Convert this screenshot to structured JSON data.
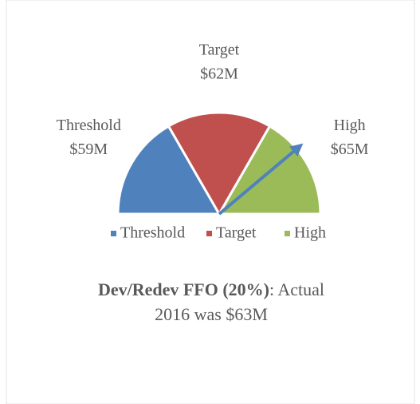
{
  "chart_data": {
    "type": "gauge",
    "categories": [
      "Threshold",
      "Target",
      "High"
    ],
    "values": [
      59,
      62,
      65
    ],
    "value_labels": [
      "$59M",
      "$62M",
      "$65M"
    ],
    "colors": [
      "#4f81bd",
      "#c0504d",
      "#9bbb59"
    ],
    "range": [
      56,
      65
    ],
    "needle": {
      "value": 63,
      "color": "#4f81bd"
    },
    "legend": "bottom",
    "caption": {
      "bold": "Dev/Redev FFO (20%)",
      "text": ": Actual 2016 was $63M"
    }
  }
}
